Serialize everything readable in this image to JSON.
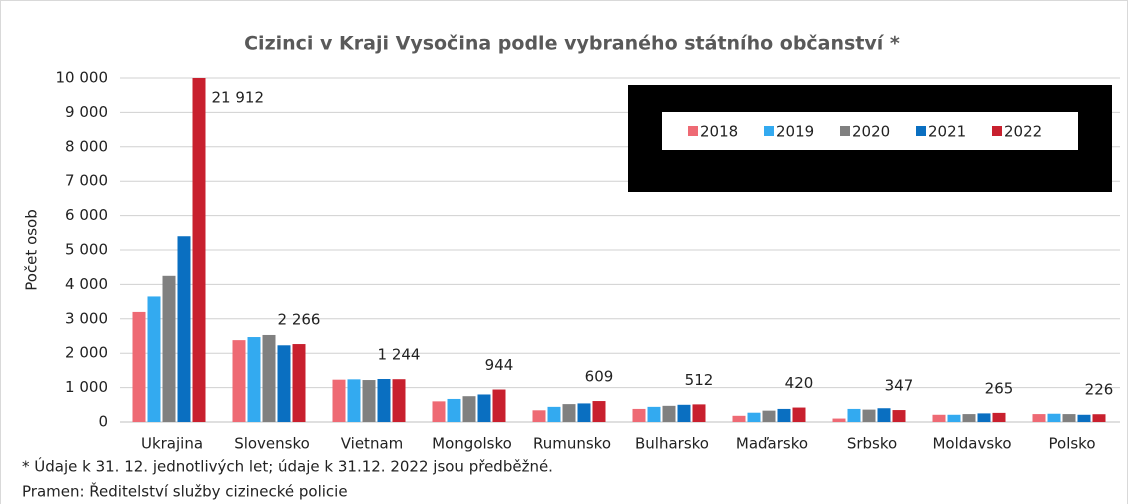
{
  "chart_data": {
    "type": "bar",
    "title": "Cizinci v Kraji Vysočina podle vybraného státního občanství *",
    "y_label": "Počet osob",
    "categories": [
      "Ukrajina",
      "Slovensko",
      "Vietnam",
      "Mongolsko",
      "Rumunsko",
      "Bulharsko",
      "Maďarsko",
      "Srbsko",
      "Moldavsko",
      "Polsko"
    ],
    "series": [
      {
        "name": "2018",
        "color": "#ee6a74",
        "values": [
          3200,
          2380,
          1230,
          600,
          340,
          380,
          180,
          100,
          210,
          230
        ]
      },
      {
        "name": "2019",
        "color": "#33aaf0",
        "values": [
          3650,
          2470,
          1240,
          670,
          440,
          440,
          270,
          380,
          210,
          240
        ]
      },
      {
        "name": "2020",
        "color": "#808080",
        "values": [
          4250,
          2530,
          1220,
          750,
          520,
          470,
          330,
          360,
          230,
          230
        ]
      },
      {
        "name": "2021",
        "color": "#0a6fc1",
        "values": [
          5400,
          2230,
          1250,
          800,
          540,
          500,
          380,
          400,
          250,
          210
        ]
      },
      {
        "name": "2022",
        "color": "#c8202e",
        "values": [
          21912,
          2266,
          1244,
          944,
          609,
          512,
          420,
          347,
          265,
          226
        ],
        "value_labels": [
          "21 912",
          "2 266",
          "1 244",
          "944",
          "609",
          "512",
          "420",
          "347",
          "265",
          "226"
        ]
      }
    ],
    "ylim": [
      0,
      10000
    ],
    "yticks": [
      0,
      {
        "value": 1000,
        "label": "1 000"
      },
      {
        "value": 2000,
        "label": "2 000"
      },
      {
        "value": 3000,
        "label": "3 000"
      },
      {
        "value": 4000,
        "label": "4 000"
      },
      {
        "value": 5000,
        "label": "5 000"
      },
      {
        "value": 6000,
        "label": "6 000"
      },
      {
        "value": 7000,
        "label": "7 000"
      },
      {
        "value": 8000,
        "label": "8 000"
      },
      {
        "value": 9000,
        "label": "9 000"
      },
      {
        "value": 10000,
        "label": "10 000"
      }
    ],
    "grid": true,
    "legend": "top-right",
    "notes": [
      "* Údaje k 31. 12. jednotlivých let; údaje k 31.12. 2022 jsou předběžné.",
      "Pramen: Ředitelství služby cizinecké policie"
    ]
  }
}
